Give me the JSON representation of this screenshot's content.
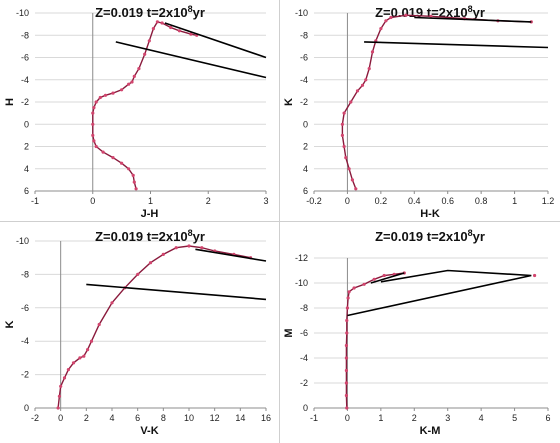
{
  "chart_data": [
    {
      "type": "line",
      "title_pre": "Z=0.019   t=2x10",
      "title_sup": "8",
      "title_post": "yr",
      "xlabel": "J-H",
      "ylabel": "H",
      "xlim": [
        -1,
        3
      ],
      "ylim": [
        6,
        -10
      ],
      "y_inverted": true,
      "xticks": [
        -1,
        0,
        1,
        2,
        3
      ],
      "yticks": [
        6,
        4,
        2,
        0,
        -2,
        -4,
        -6,
        -8,
        -10
      ],
      "grid": "horizontal",
      "series": [
        {
          "points": [
            [
              0.75,
              5.8
            ],
            [
              0.72,
              5.2
            ],
            [
              0.7,
              4.6
            ],
            [
              0.62,
              4
            ],
            [
              0.5,
              3.5
            ],
            [
              0.35,
              3
            ],
            [
              0.18,
              2.5
            ],
            [
              0.06,
              2
            ],
            [
              0.02,
              1.5
            ],
            [
              0,
              1
            ],
            [
              0,
              0
            ],
            [
              0,
              -1
            ],
            [
              0.02,
              -1.5
            ],
            [
              0.06,
              -2
            ],
            [
              0.13,
              -2.4
            ],
            [
              0.22,
              -2.6
            ],
            [
              0.35,
              -2.8
            ],
            [
              0.5,
              -3.1
            ],
            [
              0.62,
              -3.6
            ],
            [
              0.68,
              -3.8
            ],
            [
              0.72,
              -4.3
            ],
            [
              0.8,
              -5
            ],
            [
              0.9,
              -6.3
            ],
            [
              0.98,
              -7.5
            ],
            [
              1.05,
              -8.6
            ],
            [
              1.12,
              -9.2
            ],
            [
              1.2,
              -9.1
            ],
            [
              1.35,
              -8.7
            ],
            [
              1.5,
              -8.4
            ],
            [
              1.7,
              -8.1
            ],
            [
              1.8,
              -8
            ]
          ],
          "marker_color": "#d2456e",
          "line_color": "#8a1a3c"
        },
        {
          "points": [
            [
              1.25,
              -9.1
            ],
            [
              3,
              -6
            ]
          ],
          "line_color": "#000000"
        },
        {
          "points": [
            [
              0.4,
              -7.4
            ],
            [
              3,
              -4.2
            ]
          ],
          "line_color": "#000000"
        }
      ]
    },
    {
      "type": "line",
      "title_pre": "Z=0.019   t=2x10",
      "title_sup": "8",
      "title_post": "yr",
      "xlabel": "H-K",
      "ylabel": "K",
      "xlim": [
        -0.2,
        1.2
      ],
      "ylim": [
        6,
        -10
      ],
      "y_inverted": true,
      "xticks": [
        -0.2,
        0,
        0.2,
        0.4,
        0.6,
        0.8,
        1,
        1.2
      ],
      "yticks": [
        6,
        4,
        2,
        0,
        -2,
        -4,
        -6,
        -8,
        -10
      ],
      "grid": "horizontal",
      "series": [
        {
          "points": [
            [
              0.05,
              5.8
            ],
            [
              0.03,
              5
            ],
            [
              0.01,
              4
            ],
            [
              -0.01,
              3
            ],
            [
              -0.02,
              2
            ],
            [
              -0.03,
              1
            ],
            [
              -0.03,
              0
            ],
            [
              -0.02,
              -1
            ],
            [
              0.02,
              -2
            ],
            [
              0.06,
              -3
            ],
            [
              0.09,
              -3.5
            ],
            [
              0.11,
              -4
            ],
            [
              0.13,
              -5
            ],
            [
              0.15,
              -6.5
            ],
            [
              0.17,
              -7.5
            ],
            [
              0.2,
              -8.6
            ],
            [
              0.23,
              -9.3
            ],
            [
              0.26,
              -9.6
            ],
            [
              0.35,
              -9.8
            ],
            [
              0.5,
              -9.7
            ],
            [
              0.7,
              -9.5
            ],
            [
              0.9,
              -9.3
            ],
            [
              1.1,
              -9.2
            ]
          ],
          "marker_color": "#d2456e",
          "line_color": "#8a1a3c"
        },
        {
          "points": [
            [
              0.4,
              -9.6
            ],
            [
              1.1,
              -9.2
            ]
          ],
          "line_color": "#000000"
        },
        {
          "points": [
            [
              0.1,
              -7.4
            ],
            [
              1.2,
              -6.9
            ]
          ],
          "line_color": "#000000"
        }
      ]
    },
    {
      "type": "line",
      "title_pre": "Z=0.019   t=2x10",
      "title_sup": "8",
      "title_post": "yr",
      "xlabel": "V-K",
      "ylabel": "K",
      "xlim": [
        -2,
        16
      ],
      "ylim": [
        0,
        -10
      ],
      "y_inverted": true,
      "xticks": [
        -2,
        0,
        2,
        4,
        6,
        8,
        10,
        12,
        14,
        16
      ],
      "yticks": [
        0,
        -2,
        -4,
        -6,
        -8,
        -10
      ],
      "grid": "horizontal",
      "series": [
        {
          "points": [
            [
              -0.2,
              0
            ],
            [
              -0.1,
              -0.7
            ],
            [
              0,
              -1.3
            ],
            [
              0.3,
              -1.8
            ],
            [
              0.6,
              -2.3
            ],
            [
              1,
              -2.7
            ],
            [
              1.5,
              -3
            ],
            [
              1.8,
              -3.1
            ],
            [
              2.1,
              -3.5
            ],
            [
              2.4,
              -4
            ],
            [
              3,
              -5
            ],
            [
              4,
              -6.3
            ],
            [
              5,
              -7.2
            ],
            [
              6,
              -8
            ],
            [
              7,
              -8.7
            ],
            [
              8,
              -9.2
            ],
            [
              9,
              -9.6
            ],
            [
              10,
              -9.7
            ],
            [
              11,
              -9.6
            ],
            [
              12,
              -9.4
            ],
            [
              13.5,
              -9.2
            ],
            [
              14.8,
              -9
            ]
          ],
          "marker_color": "#d2456e",
          "line_color": "#8a1a3c"
        },
        {
          "points": [
            [
              10.5,
              -9.5
            ],
            [
              16,
              -8.8
            ]
          ],
          "line_color": "#000000"
        },
        {
          "points": [
            [
              2,
              -7.4
            ],
            [
              16,
              -6.5
            ]
          ],
          "line_color": "#000000"
        }
      ]
    },
    {
      "type": "line",
      "title_pre": "Z=0.019   t=2x10",
      "title_sup": "8",
      "title_post": "yr",
      "xlabel": "K-M",
      "ylabel": "M",
      "xlim": [
        -1,
        6
      ],
      "ylim": [
        0,
        -12
      ],
      "y_inverted": true,
      "xticks": [
        -1,
        0,
        1,
        2,
        3,
        4,
        5,
        6
      ],
      "yticks": [
        0,
        -2,
        -4,
        -6,
        -8,
        -10,
        -12
      ],
      "grid": "horizontal",
      "series": [
        {
          "points": [
            [
              -0.02,
              0
            ],
            [
              -0.03,
              -1
            ],
            [
              -0.03,
              -2
            ],
            [
              -0.03,
              -3
            ],
            [
              -0.03,
              -4
            ],
            [
              -0.03,
              -5
            ],
            [
              -0.02,
              -6
            ],
            [
              -0.02,
              -7
            ],
            [
              0,
              -8
            ],
            [
              0.02,
              -8.8
            ],
            [
              0.05,
              -9.3
            ],
            [
              0.2,
              -9.6
            ],
            [
              0.5,
              -9.9
            ],
            [
              0.8,
              -10.3
            ],
            [
              1.1,
              -10.6
            ],
            [
              1.4,
              -10.7
            ],
            [
              1.7,
              -10.8
            ]
          ],
          "marker_color": "#d2456e",
          "line_color": "#8a1a3c"
        },
        {
          "points": [
            [
              5.6,
              -10.6
            ]
          ],
          "marker_color": "#d2456e",
          "line_color": "#8a1a3c"
        },
        {
          "points": [
            [
              0.7,
              -10
            ],
            [
              1.7,
              -10.8
            ]
          ],
          "line_color": "#000000"
        },
        {
          "points": [
            [
              0,
              -7.4
            ],
            [
              5.5,
              -10.6
            ],
            [
              3,
              -11
            ],
            [
              1,
              -10.1
            ]
          ],
          "line_color": "#000000"
        }
      ]
    }
  ]
}
